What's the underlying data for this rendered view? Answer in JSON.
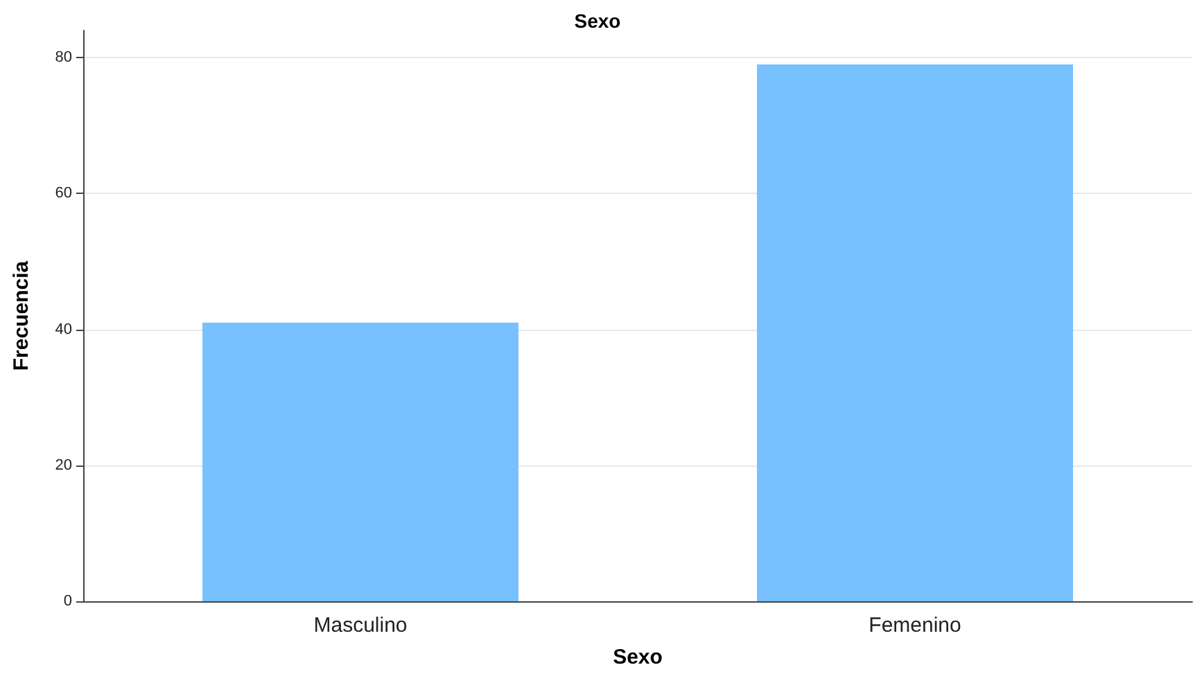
{
  "chart_data": {
    "type": "bar",
    "title": "Sexo",
    "xlabel": "Sexo",
    "ylabel": "Frecuencia",
    "categories": [
      "Masculino",
      "Femenino"
    ],
    "values": [
      41,
      79
    ],
    "color": "#78c1ff",
    "ylim": [
      0,
      84
    ],
    "yticks": [
      0,
      20,
      40,
      60,
      80
    ],
    "grid": "y"
  }
}
